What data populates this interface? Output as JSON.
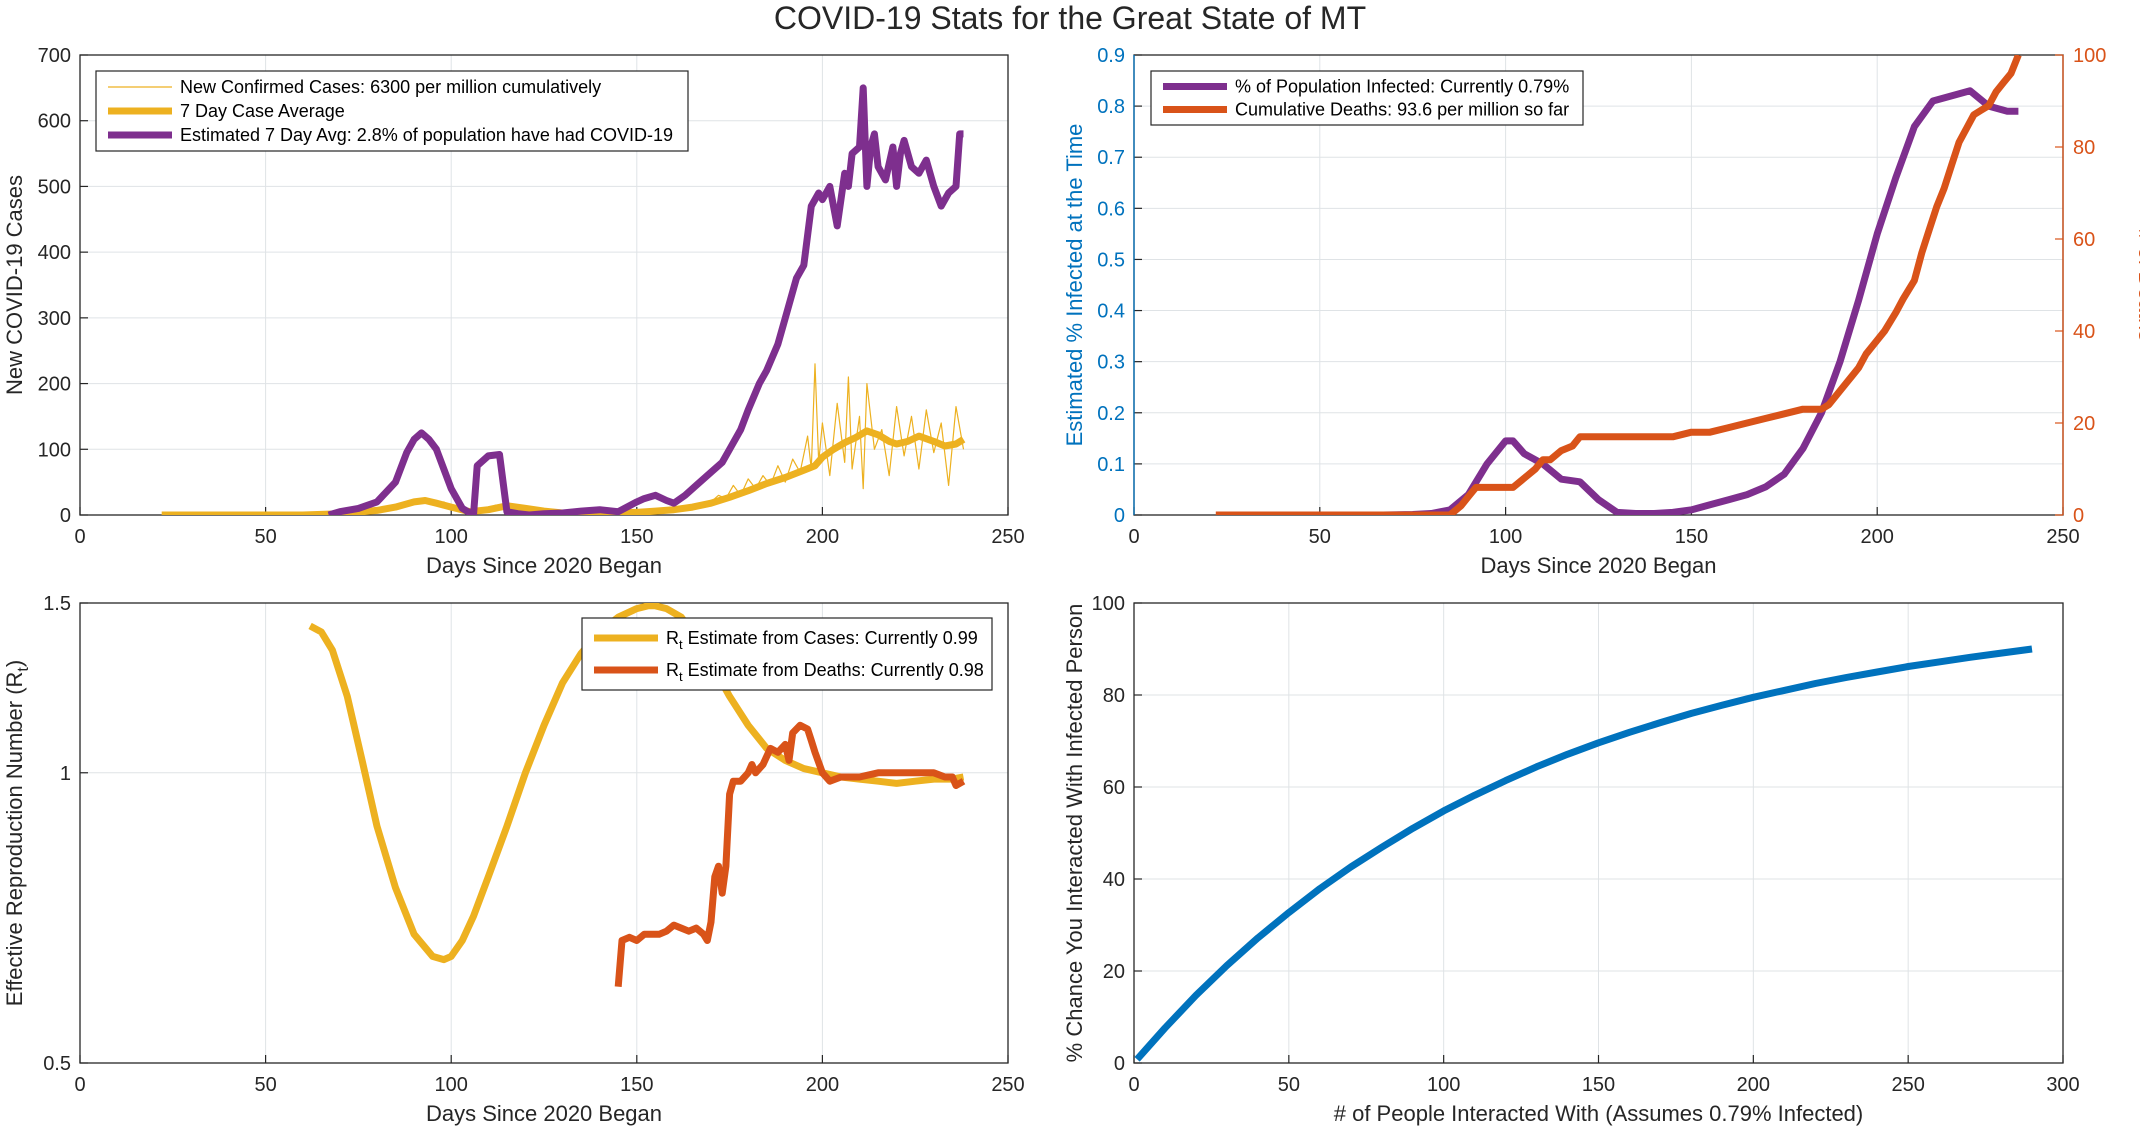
{
  "figure": {
    "title": "COVID-19 Stats for the Great State of MT"
  },
  "colors": {
    "purple": "#7E2F8E",
    "yellow": "#EDB120",
    "orange": "#D95319",
    "blue": "#0072BD",
    "axis": "#262626",
    "grid": "#dfe3e6",
    "blue_axis": "#0072BD",
    "orange_axis": "#D95319"
  },
  "chart_data": [
    {
      "type": "line",
      "xlabel": "Days Since 2020 Began",
      "ylabel": "New COVID-19 Cases",
      "xlim": [
        0,
        250
      ],
      "ylim": [
        0,
        700
      ],
      "xticks": [
        0,
        50,
        100,
        150,
        200,
        250
      ],
      "yticks": [
        0,
        100,
        200,
        300,
        400,
        500,
        600,
        700
      ],
      "grid": true,
      "legend": "top-left",
      "series": [
        {
          "name": "New Confirmed Cases: 6300 per million cumulatively",
          "style": "thin",
          "color": "#EDB120",
          "x": [
            22,
            60,
            70,
            80,
            85,
            88,
            90,
            92,
            94,
            96,
            98,
            100,
            104,
            108,
            112,
            116,
            120,
            125,
            130,
            140,
            150,
            155,
            160,
            165,
            170,
            172,
            174,
            176,
            178,
            180,
            182,
            184,
            186,
            188,
            190,
            192,
            194,
            196,
            197,
            198,
            199,
            200,
            202,
            204,
            206,
            207,
            208,
            210,
            211,
            212,
            214,
            216,
            218,
            220,
            222,
            224,
            226,
            228,
            230,
            232,
            234,
            236,
            238
          ],
          "y": [
            0,
            0,
            2,
            5,
            10,
            15,
            20,
            18,
            25,
            15,
            20,
            12,
            8,
            5,
            15,
            10,
            12,
            8,
            5,
            4,
            5,
            8,
            10,
            15,
            20,
            30,
            25,
            45,
            30,
            55,
            40,
            60,
            45,
            75,
            50,
            85,
            65,
            120,
            70,
            230,
            80,
            140,
            60,
            170,
            80,
            210,
            70,
            150,
            40,
            200,
            100,
            130,
            60,
            165,
            90,
            150,
            70,
            160,
            95,
            140,
            45,
            165,
            100
          ]
        },
        {
          "name": "7 Day Case Average",
          "style": "thick",
          "color": "#EDB120",
          "x": [
            22,
            60,
            70,
            80,
            85,
            90,
            93,
            96,
            100,
            105,
            110,
            115,
            120,
            125,
            130,
            140,
            150,
            155,
            160,
            165,
            170,
            175,
            180,
            185,
            190,
            195,
            198,
            200,
            203,
            206,
            209,
            212,
            215,
            218,
            220,
            223,
            226,
            230,
            233,
            236,
            238
          ],
          "y": [
            0,
            0,
            2,
            7,
            12,
            20,
            22,
            18,
            12,
            5,
            8,
            14,
            10,
            6,
            3,
            3,
            4,
            6,
            8,
            12,
            18,
            27,
            37,
            48,
            57,
            68,
            75,
            88,
            100,
            110,
            118,
            128,
            122,
            112,
            108,
            112,
            120,
            112,
            105,
            108,
            115
          ]
        },
        {
          "name": "Estimated 7 Day Avg: 2.8% of population have had COVID-19",
          "style": "thick",
          "color": "#7E2F8E",
          "x": [
            67,
            70,
            75,
            80,
            85,
            88,
            90,
            92,
            94,
            96,
            98,
            100,
            103,
            106,
            107,
            110,
            113,
            115,
            118,
            121,
            125,
            130,
            135,
            140,
            145,
            150,
            152,
            155,
            158,
            160,
            163,
            166,
            170,
            173,
            175,
            178,
            180,
            183,
            185,
            188,
            190,
            193,
            195,
            197,
            199,
            200,
            202,
            204,
            206,
            207,
            208,
            210,
            211,
            212,
            213,
            214,
            215,
            217,
            219,
            220,
            221,
            222,
            224,
            226,
            228,
            230,
            232,
            234,
            236,
            237,
            238
          ],
          "y": [
            0,
            5,
            10,
            20,
            50,
            95,
            115,
            125,
            115,
            100,
            70,
            40,
            10,
            0,
            75,
            90,
            92,
            5,
            2,
            0,
            2,
            3,
            6,
            8,
            5,
            20,
            25,
            30,
            22,
            18,
            30,
            45,
            65,
            80,
            100,
            130,
            160,
            200,
            220,
            260,
            300,
            360,
            380,
            470,
            490,
            480,
            500,
            440,
            520,
            500,
            550,
            560,
            650,
            500,
            560,
            580,
            530,
            510,
            560,
            500,
            550,
            570,
            530,
            520,
            540,
            500,
            470,
            490,
            500,
            580,
            580
          ]
        }
      ]
    },
    {
      "type": "line",
      "xlabel": "Days Since 2020 Began",
      "ylabel": "Estimated % Infected at the Time",
      "y2label": "# of Deaths",
      "xlim": [
        0,
        250
      ],
      "ylim": [
        0,
        0.9
      ],
      "y2lim": [
        0,
        100
      ],
      "xticks": [
        0,
        50,
        100,
        150,
        200,
        250
      ],
      "yticks": [
        0,
        0.1,
        0.2,
        0.3,
        0.4,
        0.5,
        0.6,
        0.7,
        0.8,
        0.9
      ],
      "y2ticks": [
        0,
        20,
        40,
        60,
        80,
        100
      ],
      "grid": true,
      "legend": "top-left",
      "series": [
        {
          "name": "% of Population Infected: Currently 0.79%",
          "axis": "left",
          "color": "#7E2F8E",
          "x": [
            67,
            75,
            80,
            85,
            90,
            95,
            100,
            102,
            105,
            110,
            115,
            120,
            125,
            130,
            135,
            140,
            145,
            150,
            155,
            160,
            165,
            170,
            175,
            180,
            185,
            190,
            195,
            200,
            205,
            210,
            215,
            220,
            225,
            230,
            235,
            238
          ],
          "y": [
            0,
            0.001,
            0.003,
            0.01,
            0.04,
            0.1,
            0.145,
            0.145,
            0.12,
            0.1,
            0.07,
            0.065,
            0.03,
            0.005,
            0.003,
            0.003,
            0.005,
            0.01,
            0.02,
            0.03,
            0.04,
            0.055,
            0.08,
            0.13,
            0.2,
            0.3,
            0.42,
            0.55,
            0.66,
            0.76,
            0.81,
            0.82,
            0.83,
            0.8,
            0.79,
            0.79
          ]
        },
        {
          "name": "Cumulative Deaths: 93.6 per million so far",
          "axis": "right",
          "color": "#D95319",
          "x": [
            22,
            85,
            88,
            90,
            92,
            95,
            98,
            100,
            102,
            105,
            108,
            110,
            112,
            115,
            118,
            120,
            125,
            130,
            135,
            140,
            145,
            150,
            155,
            160,
            165,
            170,
            175,
            180,
            185,
            187,
            190,
            193,
            195,
            197,
            200,
            202,
            205,
            207,
            210,
            212,
            214,
            216,
            218,
            220,
            222,
            224,
            226,
            228,
            230,
            232,
            234,
            236,
            238
          ],
          "y": [
            0,
            0,
            2,
            4,
            6,
            6,
            6,
            6,
            6,
            8,
            10,
            12,
            12,
            14,
            15,
            17,
            17,
            17,
            17,
            17,
            17,
            18,
            18,
            19,
            20,
            21,
            22,
            23,
            23,
            24,
            27,
            30,
            32,
            35,
            38,
            40,
            44,
            47,
            51,
            57,
            62,
            67,
            71,
            76,
            81,
            84,
            87,
            88,
            89,
            92,
            94,
            96,
            100
          ]
        }
      ]
    },
    {
      "type": "line",
      "xlabel": "Days Since 2020 Began",
      "ylabel": "Effective Reproduction Number (R",
      "ylabel_sub": "t",
      "ylabel_end": ")",
      "xlim": [
        0,
        250
      ],
      "ylim": [
        0.5,
        1.5
      ],
      "xticks": [
        0,
        50,
        100,
        150,
        200,
        250
      ],
      "yticks": [
        0.5,
        1,
        1.5
      ],
      "ytick_labels": [
        "0.5",
        "1",
        "1.5"
      ],
      "log_y": true,
      "grid": true,
      "legend": "top-right",
      "series": [
        {
          "name_prefix": "R",
          "name_sub": "t",
          "name": " Estimate from Cases: Currently 0.99",
          "color": "#EDB120",
          "x": [
            62,
            65,
            68,
            72,
            76,
            80,
            85,
            90,
            95,
            98,
            100,
            103,
            106,
            110,
            115,
            120,
            125,
            130,
            135,
            140,
            145,
            150,
            153,
            155,
            158,
            162,
            166,
            170,
            175,
            180,
            185,
            190,
            195,
            200,
            205,
            210,
            215,
            220,
            225,
            230,
            235,
            238
          ],
          "y": [
            1.42,
            1.4,
            1.34,
            1.2,
            1.03,
            0.88,
            0.76,
            0.68,
            0.645,
            0.64,
            0.645,
            0.67,
            0.71,
            0.78,
            0.88,
            1.0,
            1.12,
            1.24,
            1.33,
            1.4,
            1.45,
            1.48,
            1.49,
            1.49,
            1.48,
            1.45,
            1.38,
            1.3,
            1.2,
            1.12,
            1.06,
            1.03,
            1.01,
            1.0,
            0.99,
            0.985,
            0.98,
            0.975,
            0.98,
            0.985,
            0.985,
            0.99
          ]
        },
        {
          "name_prefix": "R",
          "name_sub": "t",
          "name": " Estimate from Deaths: Currently 0.98",
          "color": "#D95319",
          "x": [
            145,
            146,
            148,
            150,
            152,
            154,
            156,
            158,
            160,
            162,
            164,
            166,
            168,
            169,
            170,
            171,
            172,
            173,
            174,
            175,
            176,
            178,
            180,
            181,
            182,
            184,
            186,
            188,
            190,
            191,
            192,
            194,
            196,
            197,
            198,
            200,
            202,
            205,
            210,
            215,
            220,
            225,
            230,
            233,
            235,
            236,
            238
          ],
          "y": [
            0.6,
            0.67,
            0.675,
            0.67,
            0.68,
            0.68,
            0.68,
            0.685,
            0.695,
            0.69,
            0.685,
            0.69,
            0.68,
            0.67,
            0.7,
            0.78,
            0.8,
            0.75,
            0.8,
            0.95,
            0.98,
            0.98,
            1.0,
            1.02,
            1.0,
            1.02,
            1.06,
            1.05,
            1.07,
            1.03,
            1.1,
            1.12,
            1.11,
            1.08,
            1.05,
            1.0,
            0.98,
            0.99,
            0.99,
            1.0,
            1.0,
            1.0,
            1.0,
            0.99,
            0.99,
            0.97,
            0.98
          ]
        }
      ]
    },
    {
      "type": "line",
      "xlabel": "# of People Interacted With (Assumes 0.79% Infected)",
      "ylabel": "% Chance You Interacted With Infected Person",
      "xlim": [
        0,
        300
      ],
      "ylim": [
        0,
        100
      ],
      "xticks": [
        0,
        50,
        100,
        150,
        200,
        250,
        300
      ],
      "yticks": [
        0,
        20,
        40,
        60,
        80,
        100
      ],
      "grid": true,
      "series": [
        {
          "name": "",
          "color": "#0072BD",
          "x": [
            1,
            10,
            20,
            30,
            40,
            50,
            60,
            70,
            80,
            90,
            100,
            110,
            120,
            130,
            140,
            150,
            160,
            170,
            180,
            190,
            200,
            210,
            220,
            230,
            240,
            250,
            260,
            270,
            280,
            290
          ],
          "y": [
            0.8,
            7.6,
            14.7,
            21.2,
            27.2,
            32.7,
            37.9,
            42.6,
            46.9,
            51.0,
            54.8,
            58.2,
            61.4,
            64.4,
            67.1,
            69.6,
            71.9,
            74.0,
            76.0,
            77.8,
            79.5,
            81.0,
            82.5,
            83.8,
            85.0,
            86.2,
            87.2,
            88.2,
            89.1,
            90.0
          ]
        }
      ]
    }
  ]
}
